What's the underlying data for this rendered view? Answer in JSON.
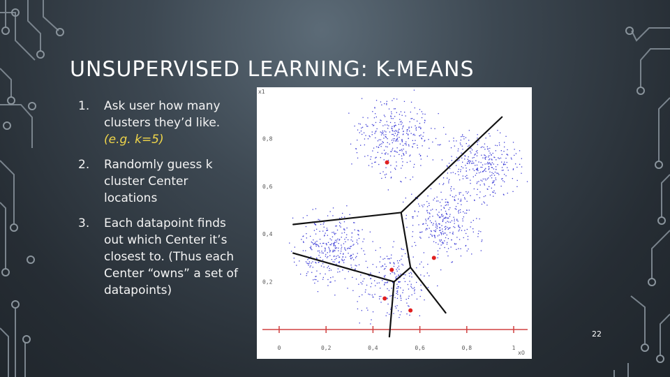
{
  "slide": {
    "title": "UNSUPERVISED LEARNING: K-MEANS",
    "page_number": "22"
  },
  "steps": [
    {
      "number": "1.",
      "text": "Ask user how many clusters they’d like.",
      "example": "(e.g. k=5)"
    },
    {
      "number": "2.",
      "text": "Randomly guess k cluster Center locations",
      "example": ""
    },
    {
      "number": "3.",
      "text": "Each datapoint finds out which Center it’s closest to. (Thus each Center “owns” a set of datapoints)",
      "example": ""
    }
  ],
  "colors": {
    "example_text": "#f0d64a",
    "datapoints": "#3a3ad6",
    "centers": "#e02020",
    "axis": "#d04040",
    "boundaries": "#111111"
  },
  "chart_data": {
    "type": "scatter",
    "xlabel": "x0",
    "ylabel": "x1",
    "x_ticks": [
      "0",
      "0,2",
      "0,4",
      "0,6",
      "0,8",
      "1"
    ],
    "y_ticks": [
      "0,8",
      "0,6",
      "0,4",
      "0,2"
    ],
    "clusters": [
      {
        "cx": 0.49,
        "cy": 0.8,
        "n": 340
      },
      {
        "cx": 0.86,
        "cy": 0.69,
        "n": 320
      },
      {
        "cx": 0.7,
        "cy": 0.45,
        "n": 300
      },
      {
        "cx": 0.22,
        "cy": 0.34,
        "n": 330
      },
      {
        "cx": 0.49,
        "cy": 0.2,
        "n": 220
      }
    ],
    "centers": [
      {
        "x": 0.46,
        "y": 0.7
      },
      {
        "x": 0.66,
        "y": 0.3
      },
      {
        "x": 0.48,
        "y": 0.25
      },
      {
        "x": 0.45,
        "y": 0.13
      },
      {
        "x": 0.56,
        "y": 0.08
      }
    ],
    "boundaries": [
      [
        [
          0.52,
          0.49
        ],
        [
          0.56,
          0.26
        ]
      ],
      [
        [
          0.52,
          0.49
        ],
        [
          0.06,
          0.44
        ]
      ],
      [
        [
          0.52,
          0.49
        ],
        [
          0.95,
          0.89
        ]
      ],
      [
        [
          0.56,
          0.26
        ],
        [
          0.49,
          0.2
        ]
      ],
      [
        [
          0.56,
          0.26
        ],
        [
          0.71,
          0.07
        ]
      ],
      [
        [
          0.49,
          0.2
        ],
        [
          0.06,
          0.32
        ]
      ],
      [
        [
          0.49,
          0.2
        ],
        [
          0.47,
          -0.03
        ]
      ]
    ]
  }
}
